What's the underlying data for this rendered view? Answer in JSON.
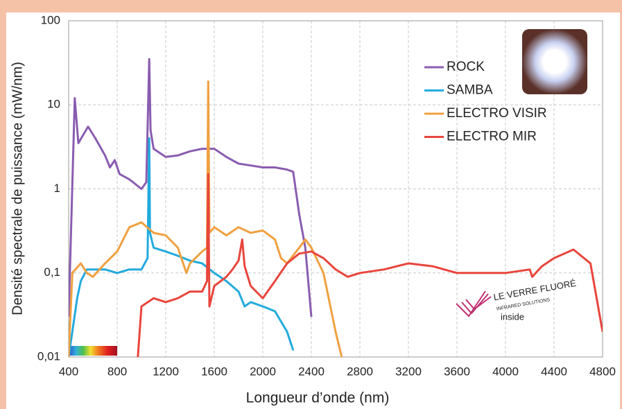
{
  "chart_data": {
    "type": "line",
    "x_label": "Longueur d’onde (nm)",
    "y_label": "Densité spectrale de puissance (mW/nm)",
    "log_y": true,
    "grid": true,
    "legend": "upper right",
    "xlim": [
      400,
      4800
    ],
    "xticks": [
      400,
      800,
      1200,
      1600,
      2000,
      2400,
      2800,
      3200,
      3600,
      4000,
      4400,
      4800
    ],
    "ylim": [
      0.01,
      100
    ],
    "yticks": [
      {
        "value": 0.01,
        "label": "0,01"
      },
      {
        "value": 0.1,
        "label": "0,1"
      },
      1,
      10,
      100
    ],
    "annotations": [
      "LE VERRE FLUORÉ",
      "INFRARED SOLUTIONS",
      "inside"
    ],
    "series": [
      {
        "name": "ROCK",
        "color": "#8a5cb0",
        "x": [
          400,
          450,
          480,
          560,
          620,
          700,
          740,
          780,
          820,
          900,
          1000,
          1040,
          1064,
          1075,
          1100,
          1200,
          1300,
          1400,
          1500,
          1600,
          1700,
          1800,
          1900,
          2000,
          2100,
          2200,
          2250,
          2300,
          2350,
          2400
        ],
        "values": [
          0.03,
          12,
          3.5,
          5.5,
          4,
          2.5,
          1.8,
          2.2,
          1.5,
          1.3,
          1.0,
          1.2,
          35,
          5,
          3,
          2.4,
          2.5,
          2.8,
          3,
          3,
          2.4,
          2,
          1.9,
          1.8,
          1.8,
          1.7,
          1.6,
          0.5,
          0.2,
          0.03
        ]
      },
      {
        "name": "SAMBA",
        "color": "#22aadd",
        "x": [
          400,
          430,
          470,
          500,
          550,
          700,
          800,
          900,
          1000,
          1050,
          1064,
          1070,
          1100,
          1200,
          1300,
          1400,
          1500,
          1600,
          1700,
          1800,
          1850,
          1900,
          2000,
          2100,
          2200,
          2250
        ],
        "values": [
          0.01,
          0.02,
          0.05,
          0.08,
          0.11,
          0.11,
          0.1,
          0.11,
          0.11,
          0.15,
          4,
          0.3,
          0.2,
          0.18,
          0.16,
          0.14,
          0.13,
          0.1,
          0.08,
          0.06,
          0.04,
          0.045,
          0.04,
          0.035,
          0.02,
          0.012
        ]
      },
      {
        "name": "ELECTRO VISIR",
        "color": "#f0a040",
        "x": [
          400,
          430,
          500,
          550,
          600,
          700,
          800,
          900,
          1000,
          1100,
          1200,
          1300,
          1370,
          1400,
          1500,
          1540,
          1550,
          1560,
          1600,
          1700,
          1800,
          1900,
          2000,
          2100,
          2150,
          2200,
          2300,
          2350,
          2400,
          2500,
          2600,
          2650
        ],
        "values": [
          0.01,
          0.1,
          0.13,
          0.1,
          0.09,
          0.13,
          0.18,
          0.35,
          0.4,
          0.3,
          0.28,
          0.2,
          0.1,
          0.13,
          0.18,
          0.2,
          19,
          0.3,
          0.35,
          0.28,
          0.35,
          0.3,
          0.32,
          0.25,
          0.15,
          0.13,
          0.2,
          0.25,
          0.2,
          0.1,
          0.02,
          0.01
        ]
      },
      {
        "name": "ELECTRO MIR",
        "color": "#e8453c",
        "x": [
          970,
          1000,
          1100,
          1200,
          1300,
          1400,
          1500,
          1540,
          1550,
          1560,
          1600,
          1700,
          1750,
          1800,
          1830,
          1850,
          1900,
          2000,
          2100,
          2200,
          2300,
          2400,
          2500,
          2600,
          2700,
          2800,
          3000,
          3200,
          3400,
          3600,
          3800,
          4000,
          4200,
          4220,
          4300,
          4400,
          4560,
          4700,
          4800
        ],
        "values": [
          0.01,
          0.04,
          0.05,
          0.045,
          0.05,
          0.06,
          0.06,
          0.08,
          1.5,
          0.04,
          0.07,
          0.09,
          0.11,
          0.14,
          0.25,
          0.12,
          0.07,
          0.05,
          0.08,
          0.13,
          0.17,
          0.18,
          0.15,
          0.11,
          0.09,
          0.1,
          0.11,
          0.13,
          0.12,
          0.1,
          0.1,
          0.1,
          0.11,
          0.09,
          0.12,
          0.15,
          0.19,
          0.13,
          0.02
        ]
      }
    ]
  }
}
